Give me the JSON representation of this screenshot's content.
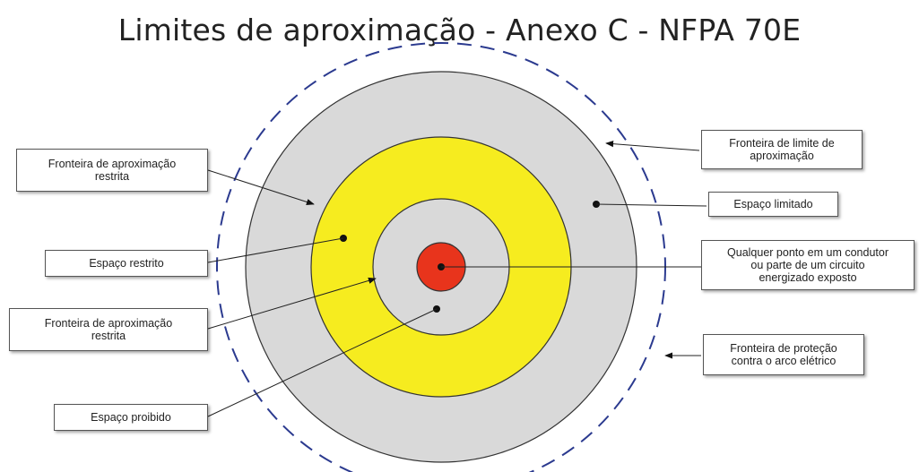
{
  "title": "Limites de aproximação - Anexo C - NFPA 70E",
  "colors": {
    "outer_zone": "#d9d9d9",
    "restricted_zone": "#f6ec1f",
    "prohibited_zone": "#d9d9d9",
    "conductor": "#e8341c",
    "arc_boundary": "#2b3a8f",
    "outline": "#333333"
  },
  "labels": {
    "limited_boundary": "Fronteira de limite de\naproximação",
    "limited_space": "Espaço limitado",
    "exposed_conductor": "Qualquer ponto em um condutor\nou parte de um circuito\nenergizado exposto",
    "arc_flash_boundary": "Fronteira de proteção\ncontra o arco elétrico",
    "restricted_boundary_top": "Fronteira de aproximação\nrestrita",
    "restricted_space": "Espaço restrito",
    "restricted_boundary_bottom": "Fronteira de aproximação\nrestrita",
    "prohibited_space": "Espaço proibido"
  }
}
